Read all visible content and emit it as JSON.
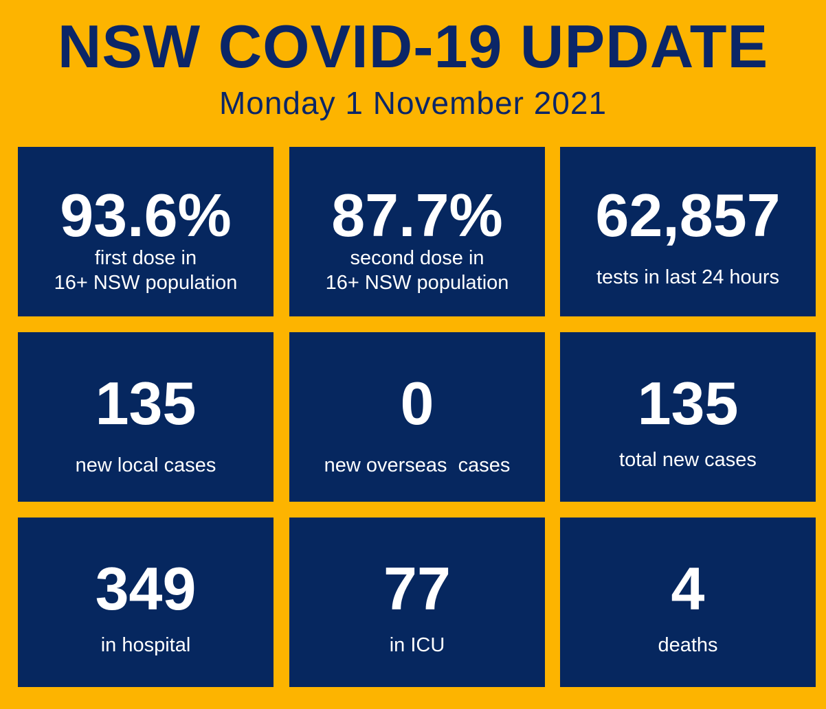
{
  "header": {
    "title": "NSW COVID-19 UPDATE",
    "date": "Monday 1 November 2021"
  },
  "colors": {
    "background": "#FDB400",
    "tile": "#06275F",
    "title_text": "#0B2667",
    "tile_text": "#FFFFFF"
  },
  "tiles": [
    {
      "value": "93.6%",
      "label": "first dose in\n16+ NSW population"
    },
    {
      "value": "87.7%",
      "label": "second dose in\n16+ NSW population"
    },
    {
      "value": "62,857",
      "label": "tests in last 24 hours"
    },
    {
      "value": "135",
      "label": "new local cases"
    },
    {
      "value": "0",
      "label": "new overseas  cases"
    },
    {
      "value": "135",
      "label": "total new cases"
    },
    {
      "value": "349",
      "label": "in hospital"
    },
    {
      "value": "77",
      "label": "in ICU"
    },
    {
      "value": "4",
      "label": "deaths"
    }
  ]
}
